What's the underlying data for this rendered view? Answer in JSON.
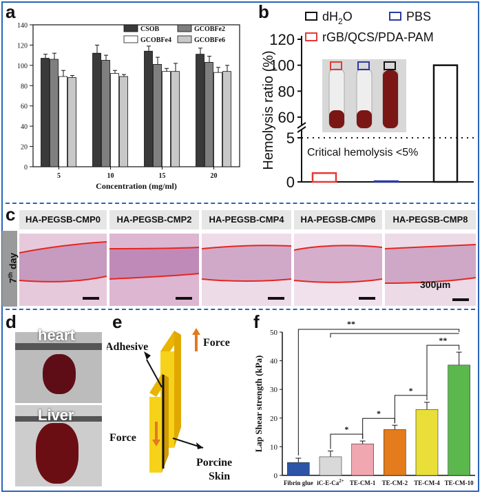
{
  "panels": {
    "a": "a",
    "b": "b",
    "c": "c",
    "d": "d",
    "e": "e",
    "f": "f"
  },
  "chart_a": {
    "type": "bar",
    "categories": [
      "5",
      "10",
      "15",
      "20"
    ],
    "series": [
      {
        "name": "CSOB",
        "color": "#3a3a3a",
        "values": [
          107,
          112,
          114,
          111
        ],
        "err": [
          4,
          8,
          5,
          6
        ]
      },
      {
        "name": "GCOBFe2",
        "color": "#7f7f7f",
        "values": [
          106,
          105,
          101,
          103
        ],
        "err": [
          6,
          5,
          7,
          6
        ]
      },
      {
        "name": "GCOBFe4",
        "color": "#ffffff",
        "values": [
          89,
          92,
          94,
          93
        ],
        "err": [
          6,
          3,
          3,
          5
        ]
      },
      {
        "name": "GCOBFe6",
        "color": "#c8c8c8",
        "values": [
          88,
          89,
          94,
          94
        ],
        "err": [
          2,
          2,
          8,
          6
        ]
      }
    ],
    "xlabel": "Concentration  (mg/ml)",
    "ylim": [
      0,
      140
    ],
    "yticks": [
      "0",
      "20",
      "40",
      "60",
      "80",
      "100",
      "120",
      "140"
    ]
  },
  "chart_b": {
    "type": "bar",
    "categories": [
      "rGB/QCS/PDA-PAM",
      "PBS",
      "dH2O"
    ],
    "values": [
      1,
      0,
      100
    ],
    "colors": [
      "#e53935",
      "#2b3aa0",
      "#111111"
    ],
    "ylabel": "Hemolysis ratio (%)",
    "yticks_upper": [
      "60",
      "80",
      "100",
      "120"
    ],
    "yticks_lower": [
      "0",
      "5"
    ],
    "legend": {
      "h2o": "dH",
      "h2o_sub": "2",
      "h2o_tail": "O",
      "pbs": "PBS",
      "gel": "rGB/QCS/PDA-PAM"
    },
    "annotation": "Critical hemolysis <5%"
  },
  "panel_c": {
    "headers": [
      "HA-PEGSB-CMP0",
      "HA-PEGSB-CMP2",
      "HA-PEGSB-CMP4",
      "HA-PEGSB-CMP6",
      "HA-PEGSB-CMP8"
    ],
    "side_label": "7",
    "side_sup": "th",
    "side_tail": " day",
    "scale": "300μm"
  },
  "panel_d": {
    "heart": "heart",
    "liver": "Liver"
  },
  "panel_e": {
    "adhesive": "Adhesive",
    "force_top": "Force",
    "force_bottom": "Force",
    "skin1": "Porcine",
    "skin2": "Skin"
  },
  "chart_f": {
    "type": "bar",
    "categories": [
      "Fibrin glue",
      "iC-E-Ca",
      "TE-CM-1",
      "TE-CM-2",
      "TE-CM-4",
      "TE-CM-10"
    ],
    "cat2_sup": "2+",
    "values": [
      4.5,
      6.5,
      11,
      16,
      23,
      38.5
    ],
    "err": [
      1.5,
      2,
      1,
      1.5,
      2.5,
      4.5
    ],
    "ylabel": "Lap Shear strength (kPa)",
    "ylim": [
      0,
      50
    ],
    "yticks": [
      "0",
      "10",
      "20",
      "30",
      "40",
      "50"
    ],
    "sig": "*",
    "sig2": "**"
  }
}
